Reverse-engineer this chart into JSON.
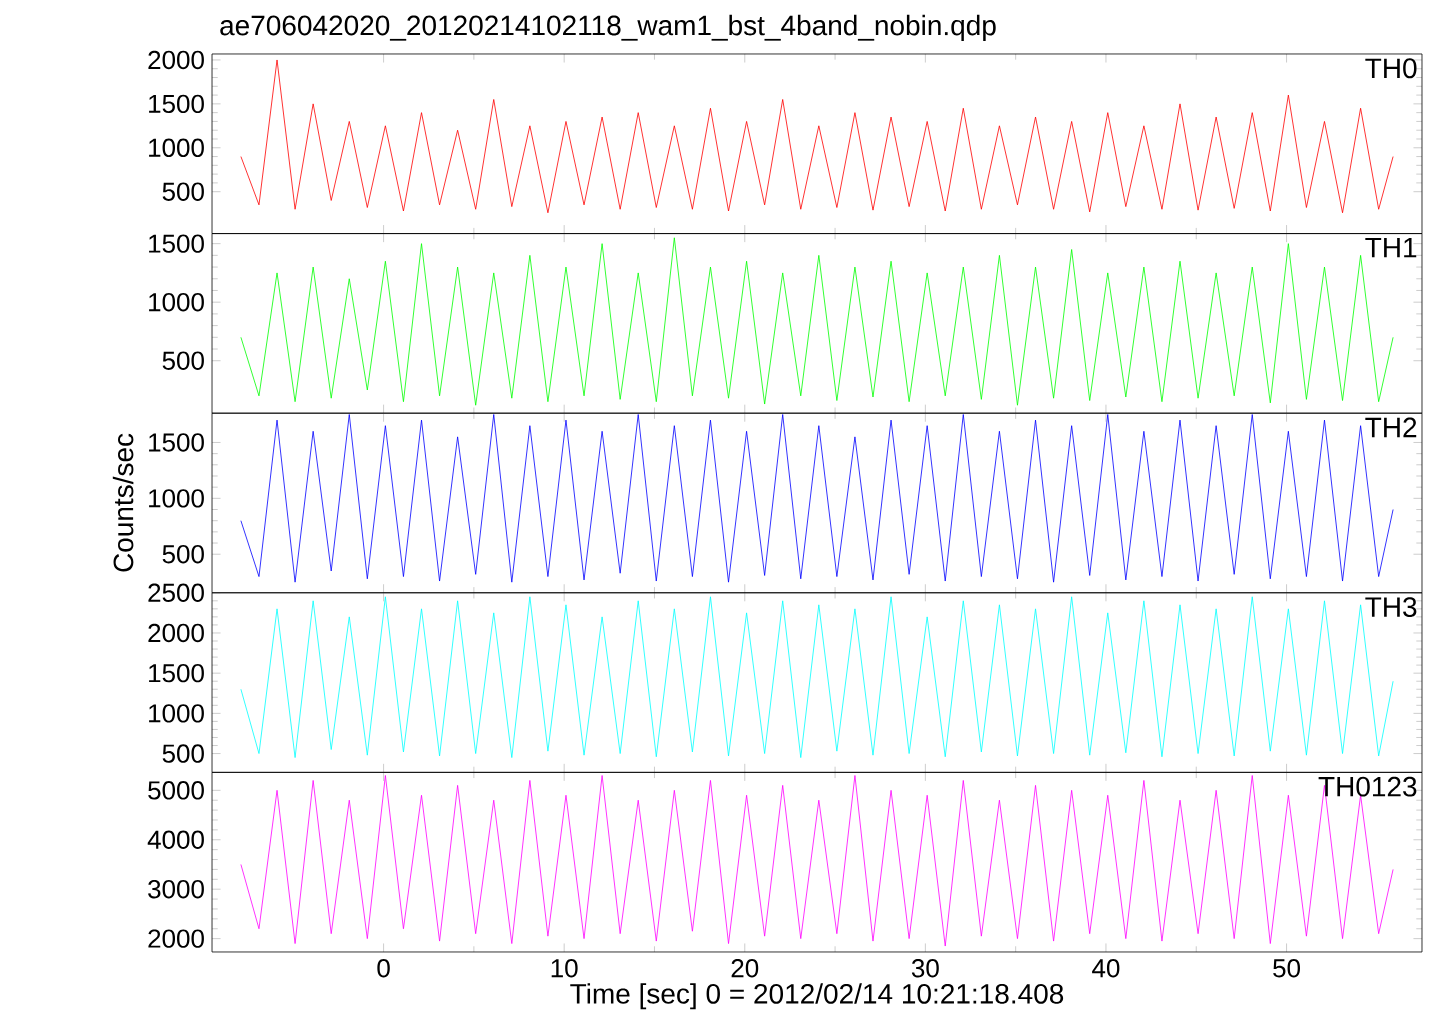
{
  "chart_data": [
    {
      "type": "line",
      "title": "ae706042020_20120214102118_wam1_bst_4band_nobin.qdp",
      "xlim": [
        -9.5,
        57.5
      ],
      "ylim": [
        23,
        2068
      ],
      "xticks": [
        0,
        10,
        20,
        30,
        40,
        50
      ],
      "yticks": [
        500,
        1000,
        1500,
        2000
      ],
      "tick_labels": "y",
      "x": [
        -7.9,
        -6.9,
        -5.9,
        -4.9,
        -3.9,
        -2.9,
        -1.9,
        -0.9,
        0.1,
        1.1,
        2.1,
        3.1,
        4.1,
        5.1,
        6.1,
        7.1,
        8.1,
        9.1,
        10.1,
        11.1,
        12.1,
        13.1,
        14.1,
        15.1,
        16.1,
        17.1,
        18.1,
        19.1,
        20.1,
        21.1,
        22.1,
        23.1,
        24.1,
        25.1,
        26.1,
        27.1,
        28.1,
        29.1,
        30.1,
        31.1,
        32.1,
        33.1,
        34.1,
        35.1,
        36.1,
        37.1,
        38.1,
        39.1,
        40.1,
        41.1,
        42.1,
        43.1,
        44.1,
        45.1,
        46.1,
        47.1,
        48.1,
        49.1,
        50.1,
        51.1,
        52.1,
        53.1,
        54.1,
        55.1,
        55.9
      ],
      "series": [
        {
          "name": "TH0",
          "color": "#ff0000",
          "values": [
            900,
            350,
            2000,
            300,
            1500,
            400,
            1300,
            320,
            1250,
            280,
            1400,
            350,
            1200,
            300,
            1550,
            330,
            1250,
            260,
            1300,
            350,
            1350,
            300,
            1400,
            320,
            1250,
            300,
            1450,
            280,
            1300,
            350,
            1550,
            300,
            1250,
            320,
            1400,
            290,
            1350,
            330,
            1300,
            280,
            1450,
            300,
            1250,
            350,
            1350,
            300,
            1300,
            270,
            1400,
            330,
            1250,
            300,
            1500,
            290,
            1350,
            310,
            1400,
            280,
            1600,
            320,
            1300,
            260,
            1450,
            300,
            900
          ]
        }
      ]
    },
    {
      "type": "line",
      "xlim": [
        -9.5,
        57.5
      ],
      "ylim": [
        52,
        1586
      ],
      "xticks": [
        0,
        10,
        20,
        30,
        40,
        50
      ],
      "yticks": [
        500,
        1000,
        1500
      ],
      "tick_labels": "y",
      "x": [
        -7.9,
        -6.9,
        -5.9,
        -4.9,
        -3.9,
        -2.9,
        -1.9,
        -0.9,
        0.1,
        1.1,
        2.1,
        3.1,
        4.1,
        5.1,
        6.1,
        7.1,
        8.1,
        9.1,
        10.1,
        11.1,
        12.1,
        13.1,
        14.1,
        15.1,
        16.1,
        17.1,
        18.1,
        19.1,
        20.1,
        21.1,
        22.1,
        23.1,
        24.1,
        25.1,
        26.1,
        27.1,
        28.1,
        29.1,
        30.1,
        31.1,
        32.1,
        33.1,
        34.1,
        35.1,
        36.1,
        37.1,
        38.1,
        39.1,
        40.1,
        41.1,
        42.1,
        43.1,
        44.1,
        45.1,
        46.1,
        47.1,
        48.1,
        49.1,
        50.1,
        51.1,
        52.1,
        53.1,
        54.1,
        55.1,
        55.9
      ],
      "series": [
        {
          "name": "TH1",
          "color": "#00ff00",
          "values": [
            700,
            200,
            1250,
            150,
            1300,
            180,
            1200,
            250,
            1350,
            150,
            1500,
            200,
            1300,
            120,
            1250,
            180,
            1400,
            150,
            1300,
            200,
            1500,
            170,
            1250,
            150,
            1550,
            200,
            1300,
            180,
            1350,
            130,
            1250,
            200,
            1400,
            160,
            1300,
            190,
            1350,
            150,
            1250,
            200,
            1300,
            170,
            1400,
            120,
            1300,
            180,
            1450,
            160,
            1250,
            190,
            1300,
            150,
            1350,
            180,
            1250,
            200,
            1300,
            140,
            1500,
            170,
            1300,
            160,
            1400,
            150,
            700
          ]
        }
      ]
    },
    {
      "type": "line",
      "ylabel": "Counts/sec",
      "xlim": [
        -9.5,
        57.5
      ],
      "ylim": [
        155,
        1762
      ],
      "xticks": [
        0,
        10,
        20,
        30,
        40,
        50
      ],
      "yticks": [
        500,
        1000,
        1500
      ],
      "tick_labels": "y",
      "x": [
        -7.9,
        -6.9,
        -5.9,
        -4.9,
        -3.9,
        -2.9,
        -1.9,
        -0.9,
        0.1,
        1.1,
        2.1,
        3.1,
        4.1,
        5.1,
        6.1,
        7.1,
        8.1,
        9.1,
        10.1,
        11.1,
        12.1,
        13.1,
        14.1,
        15.1,
        16.1,
        17.1,
        18.1,
        19.1,
        20.1,
        21.1,
        22.1,
        23.1,
        24.1,
        25.1,
        26.1,
        27.1,
        28.1,
        29.1,
        30.1,
        31.1,
        32.1,
        33.1,
        34.1,
        35.1,
        36.1,
        37.1,
        38.1,
        39.1,
        40.1,
        41.1,
        42.1,
        43.1,
        44.1,
        45.1,
        46.1,
        47.1,
        48.1,
        49.1,
        50.1,
        51.1,
        52.1,
        53.1,
        54.1,
        55.1,
        55.9
      ],
      "series": [
        {
          "name": "TH2",
          "color": "#0000ff",
          "values": [
            800,
            300,
            1700,
            250,
            1600,
            350,
            1750,
            280,
            1650,
            300,
            1700,
            260,
            1550,
            320,
            1750,
            250,
            1650,
            300,
            1700,
            270,
            1600,
            330,
            1750,
            260,
            1650,
            300,
            1700,
            250,
            1600,
            310,
            1750,
            280,
            1650,
            300,
            1550,
            270,
            1700,
            320,
            1650,
            260,
            1750,
            300,
            1600,
            280,
            1700,
            250,
            1650,
            310,
            1750,
            270,
            1600,
            300,
            1700,
            260,
            1650,
            320,
            1750,
            280,
            1600,
            300,
            1700,
            260,
            1650,
            300,
            900
          ]
        }
      ]
    },
    {
      "type": "line",
      "xlim": [
        -9.5,
        57.5
      ],
      "ylim": [
        266,
        2500
      ],
      "xticks": [
        0,
        10,
        20,
        30,
        40,
        50
      ],
      "yticks": [
        500,
        1000,
        1500,
        2000,
        2500
      ],
      "tick_labels": "y",
      "x": [
        -7.9,
        -6.9,
        -5.9,
        -4.9,
        -3.9,
        -2.9,
        -1.9,
        -0.9,
        0.1,
        1.1,
        2.1,
        3.1,
        4.1,
        5.1,
        6.1,
        7.1,
        8.1,
        9.1,
        10.1,
        11.1,
        12.1,
        13.1,
        14.1,
        15.1,
        16.1,
        17.1,
        18.1,
        19.1,
        20.1,
        21.1,
        22.1,
        23.1,
        24.1,
        25.1,
        26.1,
        27.1,
        28.1,
        29.1,
        30.1,
        31.1,
        32.1,
        33.1,
        34.1,
        35.1,
        36.1,
        37.1,
        38.1,
        39.1,
        40.1,
        41.1,
        42.1,
        43.1,
        44.1,
        45.1,
        46.1,
        47.1,
        48.1,
        49.1,
        50.1,
        51.1,
        52.1,
        53.1,
        54.1,
        55.1,
        55.9
      ],
      "series": [
        {
          "name": "TH3",
          "color": "#00ffff",
          "values": [
            1300,
            500,
            2300,
            450,
            2400,
            550,
            2200,
            480,
            2450,
            520,
            2300,
            470,
            2400,
            500,
            2250,
            450,
            2450,
            530,
            2350,
            480,
            2200,
            500,
            2400,
            460,
            2300,
            520,
            2450,
            470,
            2250,
            500,
            2400,
            450,
            2350,
            530,
            2300,
            480,
            2450,
            500,
            2200,
            460,
            2400,
            520,
            2350,
            470,
            2300,
            500,
            2450,
            480,
            2250,
            510,
            2400,
            460,
            2350,
            500,
            2300,
            470,
            2450,
            530,
            2300,
            480,
            2400,
            500,
            2350,
            470,
            1400
          ]
        }
      ]
    },
    {
      "type": "line",
      "xlabel": "Time [sec] 0 = 2012/02/14 10:21:18.408",
      "xlim": [
        -9.5,
        57.5
      ],
      "ylim": [
        1730,
        5363
      ],
      "xticks": [
        0,
        10,
        20,
        30,
        40,
        50
      ],
      "yticks": [
        2000,
        3000,
        4000,
        5000
      ],
      "x": [
        -7.9,
        -6.9,
        -5.9,
        -4.9,
        -3.9,
        -2.9,
        -1.9,
        -0.9,
        0.1,
        1.1,
        2.1,
        3.1,
        4.1,
        5.1,
        6.1,
        7.1,
        8.1,
        9.1,
        10.1,
        11.1,
        12.1,
        13.1,
        14.1,
        15.1,
        16.1,
        17.1,
        18.1,
        19.1,
        20.1,
        21.1,
        22.1,
        23.1,
        24.1,
        25.1,
        26.1,
        27.1,
        28.1,
        29.1,
        30.1,
        31.1,
        32.1,
        33.1,
        34.1,
        35.1,
        36.1,
        37.1,
        38.1,
        39.1,
        40.1,
        41.1,
        42.1,
        43.1,
        44.1,
        45.1,
        46.1,
        47.1,
        48.1,
        49.1,
        50.1,
        51.1,
        52.1,
        53.1,
        54.1,
        55.1,
        55.9
      ],
      "series": [
        {
          "name": "TH0123",
          "color": "#ff00ff",
          "values": [
            3500,
            2200,
            5000,
            1900,
            5200,
            2100,
            4800,
            2000,
            5300,
            2200,
            4900,
            1950,
            5100,
            2100,
            4800,
            1900,
            5200,
            2050,
            4900,
            2000,
            5300,
            2100,
            4800,
            1950,
            5000,
            2150,
            5200,
            1900,
            4900,
            2050,
            5100,
            2000,
            4800,
            2100,
            5300,
            1950,
            5000,
            2000,
            4900,
            1850,
            5200,
            2050,
            4800,
            2000,
            5100,
            1950,
            5000,
            2100,
            4900,
            2000,
            5200,
            1950,
            4800,
            2100,
            5000,
            2000,
            5300,
            1900,
            4900,
            2050,
            5100,
            2000,
            4900,
            2100,
            3400
          ]
        }
      ]
    }
  ]
}
